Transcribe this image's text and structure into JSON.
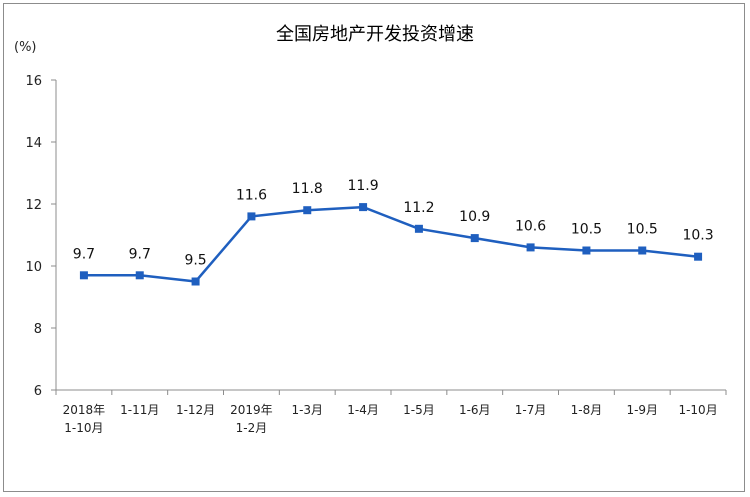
{
  "chart_data": {
    "type": "line",
    "title": "全国房地产开发投资增速",
    "ylabel": "(%)",
    "xlabel": "",
    "ylim": [
      6,
      16
    ],
    "yticks": [
      6,
      8,
      10,
      12,
      14,
      16
    ],
    "grid": false,
    "categories": [
      [
        "2018年",
        "1-10月"
      ],
      [
        "1-11月"
      ],
      [
        "1-12月"
      ],
      [
        "2019年",
        "1-2月"
      ],
      [
        "1-3月"
      ],
      [
        "1-4月"
      ],
      [
        "1-5月"
      ],
      [
        "1-6月"
      ],
      [
        "1-7月"
      ],
      [
        "1-8月"
      ],
      [
        "1-9月"
      ],
      [
        "1-10月"
      ]
    ],
    "series": [
      {
        "values": [
          9.7,
          9.7,
          9.5,
          11.6,
          11.8,
          11.9,
          11.2,
          10.9,
          10.6,
          10.5,
          10.5,
          10.3
        ],
        "labels": [
          "9.7",
          "9.7",
          "9.5",
          "11.6",
          "11.8",
          "11.9",
          "11.2",
          "10.9",
          "10.6",
          "10.5",
          "10.5",
          "10.3"
        ],
        "color": "#1f5fbf"
      }
    ]
  }
}
